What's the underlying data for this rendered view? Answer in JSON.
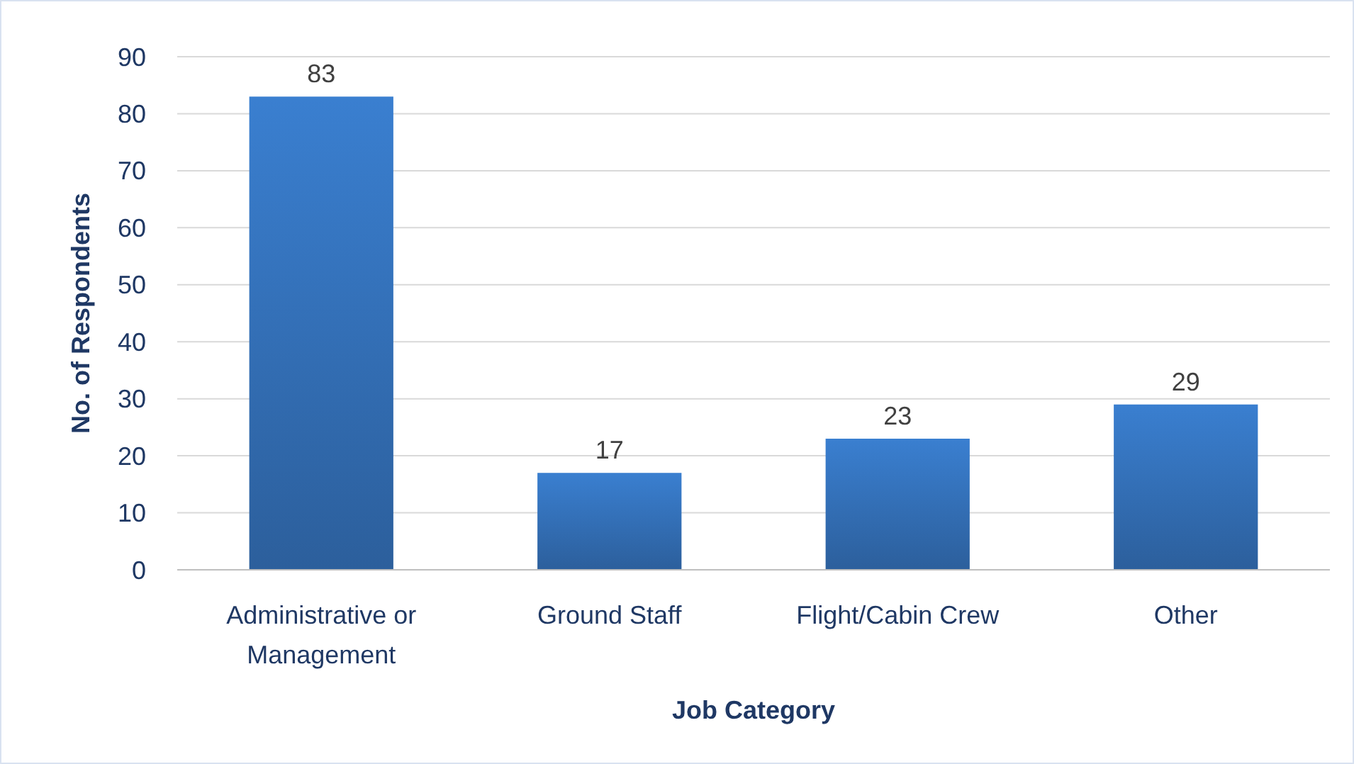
{
  "chart_data": {
    "type": "bar",
    "xlabel": "Job Category",
    "ylabel": "No. of Respondents",
    "categories": [
      "Administrative or Management",
      "Ground Staff",
      "Flight/Cabin Crew",
      "Other"
    ],
    "values": [
      83,
      17,
      23,
      29
    ],
    "color": "#3a7fd0",
    "ylim": [
      0,
      90
    ],
    "yticks": [
      0,
      10,
      20,
      30,
      40,
      50,
      60,
      70,
      80,
      90
    ],
    "grid": "y",
    "data_labels": true
  }
}
